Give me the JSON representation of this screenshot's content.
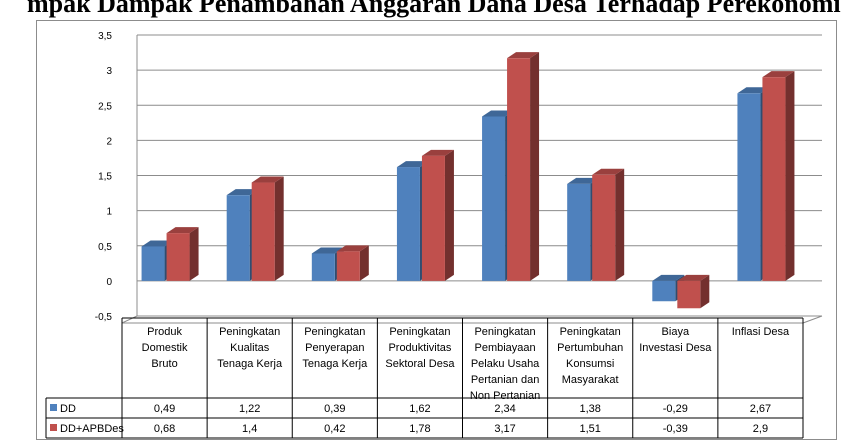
{
  "heading": "mpak Dampak Penambahan Anggaran Dana Desa Terhadap Perekonomian Nasional",
  "chart_data": {
    "type": "bar",
    "title": "",
    "xlabel": "",
    "ylabel": "",
    "ylim": [
      -0.5,
      3.5
    ],
    "yticks": [
      "-0,5",
      "0",
      "0,5",
      "1",
      "1,5",
      "2",
      "2,5",
      "3",
      "3,5"
    ],
    "grid": true,
    "legend_placement": "table-left",
    "categories": [
      [
        "Produk",
        "Domestik",
        "Bruto"
      ],
      [
        "Peningkatan",
        "Kualitas",
        "Tenaga Kerja"
      ],
      [
        "Peningkatan",
        "Penyerapan",
        "Tenaga Kerja"
      ],
      [
        "Peningkatan",
        "Produktivitas",
        "Sektoral Desa"
      ],
      [
        "Peningkatan",
        "Pembiayaan",
        "Pelaku Usaha",
        "Pertanian dan",
        "Non Pertanian"
      ],
      [
        "Peningkatan",
        "Pertumbuhan",
        "Konsumsi",
        "Masyarakat"
      ],
      [
        "Biaya",
        "Investasi Desa"
      ],
      [
        "Inflasi Desa"
      ]
    ],
    "series": [
      {
        "name": "DD",
        "color": "#4f81bd",
        "values": [
          0.49,
          1.22,
          0.39,
          1.62,
          2.34,
          1.38,
          -0.29,
          2.67
        ],
        "labels": [
          "0,49",
          "1,22",
          "0,39",
          "1,62",
          "2,34",
          "1,38",
          "-0,29",
          "2,67"
        ]
      },
      {
        "name": "DD+APBDes",
        "color": "#c0504d",
        "values": [
          0.68,
          1.4,
          0.42,
          1.78,
          3.17,
          1.51,
          -0.39,
          2.9
        ],
        "labels": [
          "0,68",
          "1,4",
          "0,42",
          "1,78",
          "3,17",
          "1,51",
          "-0,39",
          "2,9"
        ]
      }
    ]
  }
}
